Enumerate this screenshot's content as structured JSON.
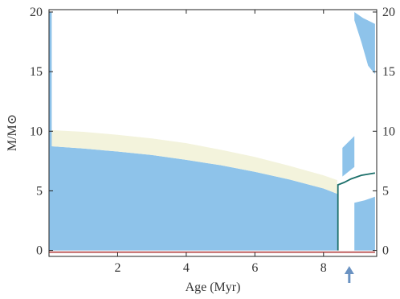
{
  "chart_data": {
    "type": "area",
    "title": "",
    "xlabel": "Age (Myr)",
    "ylabel": "M/M⊙",
    "xlim": [
      0,
      9.55
    ],
    "ylim": [
      -0.5,
      20.2
    ],
    "xticks": [
      2,
      4,
      6,
      8
    ],
    "xtick_labels": [
      "2",
      "4",
      "6",
      "8"
    ],
    "yticks": [
      0,
      5,
      10,
      15,
      20
    ],
    "ytick_labels_left": [
      "0",
      "5",
      "10",
      "15",
      "20"
    ],
    "ytick_labels_right": [
      "0",
      "5",
      "10",
      "15",
      "20"
    ],
    "grid": false,
    "legend": "none",
    "colors": {
      "convective": "#8ec3ea",
      "overshoot": "#f3f3dc",
      "boundary_line": "#1b6f6a",
      "inner_core": "#c06060",
      "arrow": "#6a92c2"
    },
    "regions": [
      {
        "name": "convective core",
        "color": "convective",
        "upper_boundary": [
          [
            0.0,
            8.75
          ],
          [
            1.0,
            8.55
          ],
          [
            2.0,
            8.3
          ],
          [
            3.0,
            8.0
          ],
          [
            4.0,
            7.6
          ],
          [
            5.0,
            7.15
          ],
          [
            6.0,
            6.6
          ],
          [
            7.0,
            5.95
          ],
          [
            8.0,
            5.2
          ],
          [
            8.4,
            4.75
          ]
        ],
        "lower_boundary": [
          [
            0.0,
            0.0
          ],
          [
            8.4,
            0.0
          ]
        ]
      },
      {
        "name": "overshoot zone",
        "color": "overshoot",
        "upper_boundary": [
          [
            0.0,
            10.1
          ],
          [
            1.0,
            9.95
          ],
          [
            2.0,
            9.7
          ],
          [
            3.0,
            9.4
          ],
          [
            4.0,
            9.0
          ],
          [
            5.0,
            8.45
          ],
          [
            6.0,
            7.85
          ],
          [
            7.0,
            7.1
          ],
          [
            8.0,
            6.3
          ],
          [
            8.4,
            5.9
          ]
        ],
        "lower_boundary": [
          [
            0.0,
            8.75
          ],
          [
            1.0,
            8.55
          ],
          [
            2.0,
            8.3
          ],
          [
            3.0,
            8.0
          ],
          [
            4.0,
            7.6
          ],
          [
            5.0,
            7.15
          ],
          [
            6.0,
            6.6
          ],
          [
            7.0,
            5.95
          ],
          [
            8.0,
            5.2
          ],
          [
            8.4,
            4.75
          ]
        ]
      },
      {
        "name": "outer convective envelope",
        "color": "convective",
        "upper_boundary": [
          [
            8.9,
            20.0
          ],
          [
            9.15,
            19.5
          ],
          [
            9.5,
            19.0
          ]
        ],
        "lower_boundary": [
          [
            8.9,
            19.3
          ],
          [
            9.1,
            17.5
          ],
          [
            9.3,
            15.5
          ],
          [
            9.5,
            14.8
          ]
        ]
      },
      {
        "name": "intermediate convective zone",
        "color": "convective",
        "upper_boundary": [
          [
            8.55,
            8.6
          ],
          [
            8.9,
            9.6
          ]
        ],
        "lower_boundary": [
          [
            8.55,
            6.2
          ],
          [
            8.9,
            7.0
          ]
        ]
      },
      {
        "name": "shell convective region",
        "color": "convective",
        "upper_boundary": [
          [
            8.9,
            4.0
          ],
          [
            9.2,
            4.2
          ],
          [
            9.5,
            4.5
          ]
        ],
        "lower_boundary": [
          [
            8.9,
            0.0
          ],
          [
            9.5,
            0.0
          ]
        ]
      },
      {
        "name": "left edge strip",
        "color": "convective",
        "upper_boundary": [
          [
            0.0,
            20.0
          ],
          [
            0.08,
            20.0
          ]
        ],
        "lower_boundary": [
          [
            0.0,
            0.0
          ],
          [
            0.08,
            0.0
          ]
        ]
      }
    ],
    "boundary_line": [
      [
        8.42,
        0.0
      ],
      [
        8.42,
        5.5
      ],
      [
        8.6,
        5.7
      ],
      [
        8.8,
        6.0
      ],
      [
        9.1,
        6.3
      ],
      [
        9.5,
        6.5
      ]
    ],
    "inner_boundary_line": [
      [
        0.0,
        -0.15
      ],
      [
        9.5,
        -0.15
      ]
    ],
    "arrow_marker_x": 8.75
  }
}
